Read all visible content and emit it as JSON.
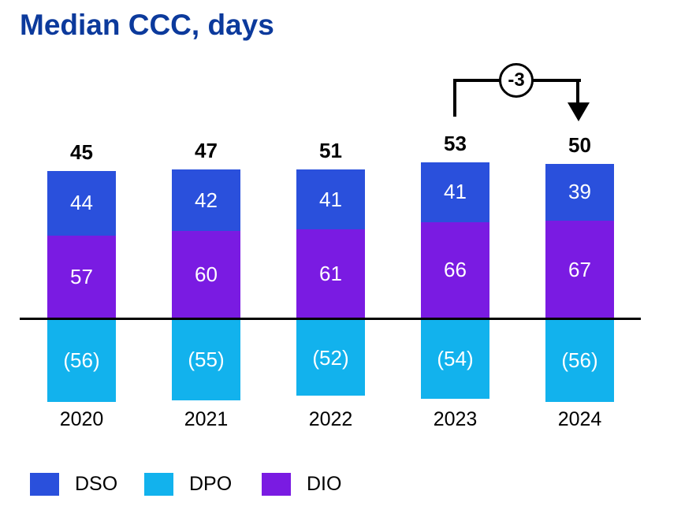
{
  "title": {
    "text": "Median CCC, days",
    "color": "#0c3a9c"
  },
  "chart_data": {
    "type": "bar",
    "stacked": true,
    "orientation": "vertical",
    "title": "Median CCC, days",
    "categories": [
      "2020",
      "2021",
      "2022",
      "2023",
      "2024"
    ],
    "series": [
      {
        "name": "DSO",
        "color": "#2a50dc",
        "position": "above-axis",
        "values": [
          44,
          42,
          41,
          41,
          39
        ]
      },
      {
        "name": "DIO",
        "color": "#7a1be2",
        "position": "above-axis",
        "values": [
          57,
          60,
          61,
          66,
          67
        ]
      },
      {
        "name": "DPO",
        "color": "#12b2ed",
        "position": "below-axis",
        "values": [
          56,
          55,
          52,
          54,
          56
        ],
        "display_labels": [
          "(56)",
          "(55)",
          "(52)",
          "(54)",
          "(56)"
        ]
      }
    ],
    "totals": [
      45,
      47,
      51,
      53,
      50
    ],
    "annotation": {
      "label": "-3",
      "from_category": "2023",
      "to_category": "2024"
    },
    "axis": {
      "baseline_visible": true,
      "baseline_color": "#000000",
      "gridlines": false
    },
    "legend": [
      {
        "label": "DSO",
        "color": "#2a50dc"
      },
      {
        "label": "DPO",
        "color": "#12b2ed"
      },
      {
        "label": "DIO",
        "color": "#7a1be2"
      }
    ],
    "value_label_color": "#ffffff",
    "total_label_color": "#000000"
  }
}
